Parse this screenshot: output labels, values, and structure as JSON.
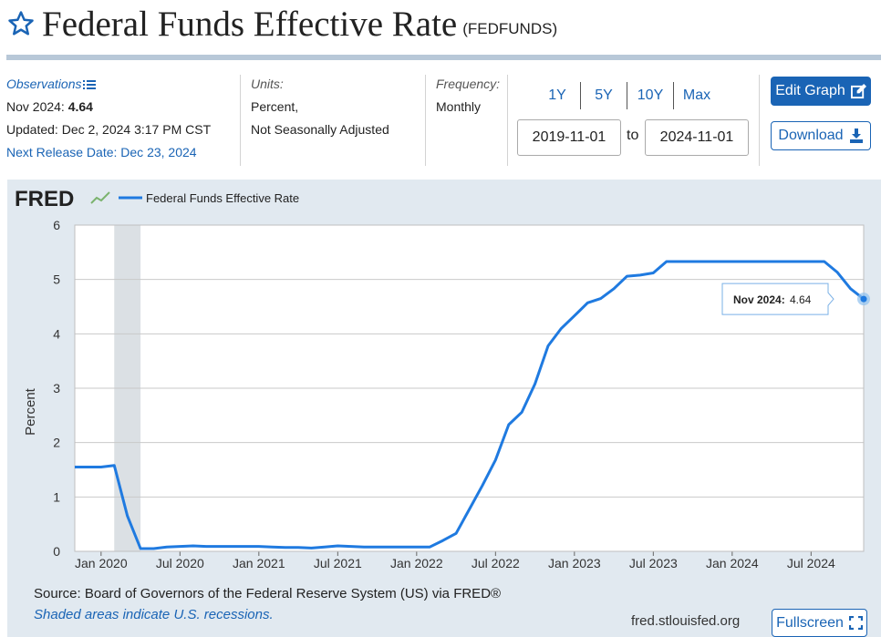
{
  "header": {
    "title": "Federal Funds Effective Rate",
    "series_id": "(FEDFUNDS)"
  },
  "meta": {
    "observations_label": "Observations",
    "obs_period": "Nov 2024:",
    "obs_value": "4.64",
    "updated": "Updated: Dec 2, 2024 3:17 PM CST",
    "next_release": "Next Release Date: Dec 23, 2024",
    "units_label": "Units:",
    "units_line1": "Percent,",
    "units_line2": "Not Seasonally Adjusted",
    "frequency_label": "Frequency:",
    "frequency_value": "Monthly"
  },
  "range": {
    "links": [
      "1Y",
      "5Y",
      "10Y",
      "Max"
    ],
    "start": "2019-11-01",
    "to": "to",
    "end": "2024-11-01"
  },
  "buttons": {
    "edit": "Edit Graph",
    "download": "Download",
    "fullscreen": "Fullscreen"
  },
  "footer": {
    "source": "Source: Board of Governors of the Federal Reserve System (US) via FRED®",
    "recession_note": "Shaded areas indicate U.S. recessions.",
    "url": "fred.stlouisfed.org"
  },
  "colors": {
    "accent": "#1a64b5",
    "line": "#1f7ae0",
    "panel_bg": "#e1e9f0",
    "recession": "#dbe0e4"
  },
  "chart_data": {
    "type": "line",
    "logo": "FRED",
    "legend": "Federal Funds Effective Rate",
    "ylabel": "Percent",
    "ylim": [
      0,
      6
    ],
    "yticks": [
      0,
      1,
      2,
      3,
      4,
      5,
      6
    ],
    "xlim": [
      "2019-11",
      "2024-11"
    ],
    "xticks": [
      {
        "label": "Jan 2020",
        "date": "2020-01"
      },
      {
        "label": "Jul 2020",
        "date": "2020-07"
      },
      {
        "label": "Jan 2021",
        "date": "2021-01"
      },
      {
        "label": "Jul 2021",
        "date": "2021-07"
      },
      {
        "label": "Jan 2022",
        "date": "2022-01"
      },
      {
        "label": "Jul 2022",
        "date": "2022-07"
      },
      {
        "label": "Jan 2023",
        "date": "2023-01"
      },
      {
        "label": "Jul 2023",
        "date": "2023-07"
      },
      {
        "label": "Jan 2024",
        "date": "2024-01"
      },
      {
        "label": "Jul 2024",
        "date": "2024-07"
      }
    ],
    "recessions": [
      {
        "start": "2020-02",
        "end": "2020-04"
      }
    ],
    "series": [
      {
        "name": "Federal Funds Effective Rate",
        "x": [
          "2019-11",
          "2019-12",
          "2020-01",
          "2020-02",
          "2020-03",
          "2020-04",
          "2020-05",
          "2020-06",
          "2020-07",
          "2020-08",
          "2020-09",
          "2020-10",
          "2020-11",
          "2020-12",
          "2021-01",
          "2021-02",
          "2021-03",
          "2021-04",
          "2021-05",
          "2021-06",
          "2021-07",
          "2021-08",
          "2021-09",
          "2021-10",
          "2021-11",
          "2021-12",
          "2022-01",
          "2022-02",
          "2022-03",
          "2022-04",
          "2022-05",
          "2022-06",
          "2022-07",
          "2022-08",
          "2022-09",
          "2022-10",
          "2022-11",
          "2022-12",
          "2023-01",
          "2023-02",
          "2023-03",
          "2023-04",
          "2023-05",
          "2023-06",
          "2023-07",
          "2023-08",
          "2023-09",
          "2023-10",
          "2023-11",
          "2023-12",
          "2024-01",
          "2024-02",
          "2024-03",
          "2024-04",
          "2024-05",
          "2024-06",
          "2024-07",
          "2024-08",
          "2024-09",
          "2024-10",
          "2024-11"
        ],
        "values": [
          1.55,
          1.55,
          1.55,
          1.58,
          0.65,
          0.05,
          0.05,
          0.08,
          0.09,
          0.1,
          0.09,
          0.09,
          0.09,
          0.09,
          0.09,
          0.08,
          0.07,
          0.07,
          0.06,
          0.08,
          0.1,
          0.09,
          0.08,
          0.08,
          0.08,
          0.08,
          0.08,
          0.08,
          0.2,
          0.33,
          0.77,
          1.21,
          1.68,
          2.33,
          2.56,
          3.08,
          3.78,
          4.1,
          4.33,
          4.57,
          4.65,
          4.83,
          5.06,
          5.08,
          5.12,
          5.33,
          5.33,
          5.33,
          5.33,
          5.33,
          5.33,
          5.33,
          5.33,
          5.33,
          5.33,
          5.33,
          5.33,
          5.33,
          5.13,
          4.83,
          4.64
        ]
      }
    ],
    "tooltip": {
      "label": "Nov 2024:",
      "value": "4.64"
    }
  }
}
